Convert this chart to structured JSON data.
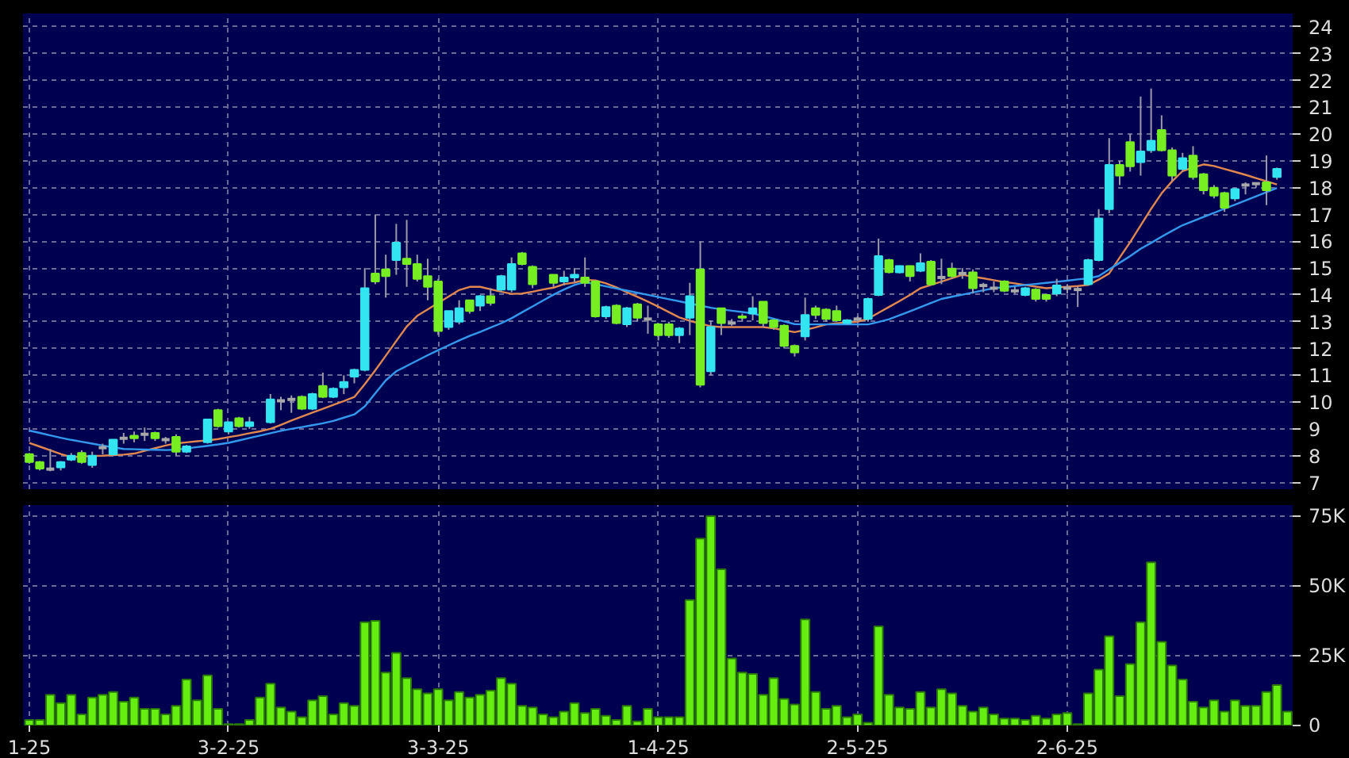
{
  "chart_data": [
    {
      "type": "candlestick",
      "categories": [
        null,
        null,
        null,
        null,
        null,
        null,
        null,
        null,
        null,
        null,
        null,
        null,
        null,
        null,
        null,
        null,
        null,
        null,
        null,
        null,
        null,
        null,
        null,
        null,
        null,
        null,
        null,
        null,
        null,
        null,
        null,
        null,
        null,
        null,
        null,
        null,
        null,
        null,
        null,
        null,
        null,
        null,
        null,
        null,
        null,
        null,
        null,
        null,
        null,
        null,
        null,
        null,
        null,
        null,
        null,
        null,
        null,
        null,
        null,
        null,
        null,
        null,
        null,
        null,
        null,
        null,
        null,
        null,
        null,
        null,
        null,
        null,
        null,
        null,
        null,
        null,
        null,
        null,
        null,
        null,
        null,
        null,
        null,
        null,
        null,
        null,
        null,
        null,
        null,
        null,
        null,
        null,
        null,
        null,
        null,
        null,
        null,
        null,
        null,
        null,
        null,
        null,
        null,
        null,
        null,
        null,
        null,
        null,
        null,
        null,
        null,
        null,
        null,
        null,
        null,
        null,
        null,
        null,
        null,
        null,
        null
      ],
      "ohlc": [
        [
          8.06,
          8.1,
          7.7,
          7.76
        ],
        [
          7.76,
          7.8,
          7.45,
          7.52
        ],
        [
          7.5,
          8.25,
          7.42,
          7.5
        ],
        [
          7.56,
          7.8,
          7.45,
          7.76
        ],
        [
          7.85,
          8.1,
          7.8,
          8.0
        ],
        [
          8.1,
          8.2,
          7.7,
          7.76
        ],
        [
          7.65,
          8.15,
          7.55,
          8.0
        ],
        [
          8.3,
          8.45,
          8.05,
          8.3
        ],
        [
          8.05,
          8.6,
          8.0,
          8.6
        ],
        [
          8.65,
          8.85,
          8.45,
          8.65
        ],
        [
          8.75,
          8.9,
          8.5,
          8.65
        ],
        [
          8.8,
          9.05,
          8.55,
          8.8
        ],
        [
          8.85,
          8.9,
          8.55,
          8.65
        ],
        [
          8.6,
          8.7,
          8.45,
          8.6
        ],
        [
          8.7,
          8.8,
          8.0,
          8.15
        ],
        [
          8.15,
          8.4,
          8.1,
          8.35
        ],
        null,
        [
          8.5,
          9.35,
          8.45,
          9.35
        ],
        [
          9.7,
          9.75,
          9.05,
          9.1
        ],
        [
          8.9,
          9.25,
          8.8,
          9.25
        ],
        [
          9.4,
          9.45,
          9.05,
          9.1
        ],
        [
          9.1,
          9.45,
          9.0,
          9.25
        ],
        null,
        [
          9.25,
          10.3,
          9.2,
          10.1
        ],
        [
          10.05,
          10.2,
          9.7,
          10.05
        ],
        [
          10.1,
          10.25,
          9.6,
          10.1
        ],
        [
          10.2,
          10.25,
          9.7,
          9.75
        ],
        [
          9.75,
          10.35,
          9.7,
          10.3
        ],
        [
          10.6,
          11.1,
          10.15,
          10.2
        ],
        [
          10.2,
          10.55,
          10.15,
          10.5
        ],
        [
          10.55,
          11.0,
          10.3,
          10.75
        ],
        [
          10.95,
          11.25,
          10.7,
          11.2
        ],
        [
          11.2,
          15.0,
          11.15,
          14.25
        ],
        [
          14.8,
          17.0,
          14.4,
          14.5
        ],
        [
          14.95,
          15.5,
          13.9,
          14.7
        ],
        [
          15.3,
          16.65,
          14.75,
          15.95
        ],
        [
          15.35,
          16.8,
          14.3,
          15.15
        ],
        [
          15.15,
          15.5,
          14.5,
          14.6
        ],
        [
          14.7,
          15.35,
          13.8,
          14.3
        ],
        [
          14.5,
          14.6,
          12.5,
          12.65
        ],
        [
          12.8,
          13.4,
          12.7,
          13.4
        ],
        [
          13.0,
          13.8,
          12.9,
          13.5
        ],
        [
          13.8,
          13.8,
          13.3,
          13.4
        ],
        [
          13.6,
          14.0,
          13.4,
          13.95
        ],
        [
          13.95,
          14.25,
          13.6,
          13.7
        ],
        [
          14.2,
          14.75,
          14.1,
          14.7
        ],
        [
          14.2,
          15.4,
          14.1,
          15.15
        ],
        [
          15.55,
          15.6,
          15.1,
          15.15
        ],
        [
          15.05,
          15.1,
          14.25,
          14.4
        ],
        null,
        [
          14.75,
          14.75,
          14.3,
          14.45
        ],
        [
          14.5,
          14.9,
          14.35,
          14.65
        ],
        [
          14.65,
          15.0,
          14.45,
          14.75
        ],
        [
          14.65,
          15.4,
          14.3,
          14.45
        ],
        [
          14.5,
          14.55,
          13.15,
          13.2
        ],
        [
          13.2,
          13.6,
          13.1,
          13.55
        ],
        [
          13.6,
          13.65,
          12.9,
          12.95
        ],
        [
          12.9,
          13.55,
          12.8,
          13.5
        ],
        [
          13.65,
          13.7,
          13.0,
          13.15
        ],
        [
          13.1,
          13.6,
          12.55,
          13.1
        ],
        [
          12.9,
          12.95,
          12.3,
          12.5
        ],
        [
          12.9,
          13.0,
          12.4,
          12.5
        ],
        [
          12.5,
          12.8,
          12.2,
          12.75
        ],
        [
          13.15,
          14.45,
          12.5,
          13.95
        ],
        [
          14.95,
          16.0,
          10.55,
          10.65
        ],
        [
          11.15,
          13.05,
          11.0,
          12.8
        ],
        [
          13.5,
          13.5,
          12.5,
          12.95
        ],
        [
          12.95,
          13.1,
          12.85,
          12.95
        ],
        [
          13.2,
          13.3,
          13.0,
          13.15
        ],
        [
          13.3,
          13.95,
          13.05,
          13.5
        ],
        [
          13.75,
          13.75,
          12.8,
          12.95
        ],
        [
          13.05,
          13.1,
          12.7,
          12.8
        ],
        [
          12.85,
          12.9,
          12.0,
          12.1
        ],
        [
          12.1,
          12.15,
          11.7,
          11.85
        ],
        [
          12.45,
          13.9,
          12.3,
          13.25
        ],
        [
          13.5,
          13.6,
          13.1,
          13.25
        ],
        [
          13.45,
          13.5,
          13.0,
          13.1
        ],
        [
          13.4,
          13.6,
          13.0,
          13.05
        ],
        [
          12.95,
          13.1,
          12.9,
          13.05
        ],
        [
          13.1,
          13.2,
          13.0,
          13.1
        ],
        [
          13.1,
          13.9,
          13.0,
          13.85
        ],
        [
          14.0,
          16.1,
          13.95,
          15.45
        ],
        [
          15.3,
          15.35,
          14.8,
          14.85
        ],
        [
          14.84,
          15.1,
          14.8,
          15.08
        ],
        [
          15.08,
          15.1,
          14.5,
          14.7
        ],
        [
          14.9,
          15.55,
          14.85,
          15.18
        ],
        [
          15.24,
          15.3,
          14.35,
          14.4
        ],
        [
          14.65,
          15.35,
          14.4,
          14.65
        ],
        [
          14.98,
          15.2,
          14.6,
          14.7
        ],
        [
          14.8,
          15.0,
          14.6,
          14.8
        ],
        [
          14.84,
          14.95,
          14.05,
          14.25
        ],
        [
          14.35,
          14.45,
          14.1,
          14.35
        ],
        [
          14.25,
          14.5,
          14.1,
          14.25
        ],
        [
          14.5,
          14.55,
          14.1,
          14.15
        ],
        [
          14.15,
          14.3,
          14.05,
          14.15
        ],
        [
          14.0,
          14.3,
          13.95,
          14.25
        ],
        [
          14.2,
          14.25,
          13.75,
          13.85
        ],
        [
          14.0,
          14.05,
          13.75,
          13.85
        ],
        [
          14.05,
          14.6,
          13.95,
          14.35
        ],
        [
          14.25,
          14.4,
          14.05,
          14.25
        ],
        [
          14.2,
          14.3,
          13.55,
          14.2
        ],
        [
          14.4,
          15.35,
          14.35,
          15.3
        ],
        [
          15.3,
          17.2,
          15.25,
          16.85
        ],
        [
          17.2,
          19.85,
          17.05,
          18.85
        ],
        [
          18.85,
          19.0,
          18.1,
          18.45
        ],
        [
          19.7,
          20.0,
          18.6,
          18.8
        ],
        [
          18.95,
          21.4,
          18.45,
          19.35
        ],
        [
          19.4,
          21.7,
          19.3,
          19.75
        ],
        [
          20.15,
          20.7,
          19.35,
          19.4
        ],
        [
          19.4,
          19.5,
          18.25,
          18.45
        ],
        [
          18.7,
          19.3,
          18.6,
          19.1
        ],
        [
          19.2,
          19.55,
          18.3,
          18.4
        ],
        [
          18.5,
          18.55,
          17.75,
          17.9
        ],
        [
          18.0,
          18.1,
          17.6,
          17.7
        ],
        [
          17.8,
          17.85,
          17.1,
          17.25
        ],
        [
          17.6,
          18.0,
          17.5,
          17.95
        ],
        [
          18.1,
          18.2,
          17.75,
          18.1
        ],
        [
          18.15,
          18.2,
          18.0,
          18.15
        ],
        [
          18.2,
          19.2,
          17.35,
          17.9
        ],
        [
          18.4,
          18.75,
          18.3,
          18.7
        ],
        null
      ],
      "colors": [
        "#77ee22",
        "#77ee22",
        "#a8a8a8",
        "#33e5f0",
        "#33e5f0",
        "#77ee22",
        "#33e5f0",
        "#a8a8a8",
        "#33e5f0",
        "#a8a8a8",
        "#77ee22",
        "#a8a8a8",
        "#77ee22",
        "#a8a8a8",
        "#77ee22",
        "#33e5f0",
        null,
        "#33e5f0",
        "#77ee22",
        "#33e5f0",
        "#77ee22",
        "#33e5f0",
        null,
        "#33e5f0",
        "#a8a8a8",
        "#a8a8a8",
        "#77ee22",
        "#33e5f0",
        "#77ee22",
        "#33e5f0",
        "#33e5f0",
        "#33e5f0",
        "#33e5f0",
        "#77ee22",
        "#77ee22",
        "#33e5f0",
        "#77ee22",
        "#77ee22",
        "#77ee22",
        "#77ee22",
        "#33e5f0",
        "#33e5f0",
        "#77ee22",
        "#33e5f0",
        "#77ee22",
        "#33e5f0",
        "#33e5f0",
        "#77ee22",
        "#77ee22",
        null,
        "#77ee22",
        "#33e5f0",
        "#33e5f0",
        "#77ee22",
        "#77ee22",
        "#33e5f0",
        "#77ee22",
        "#33e5f0",
        "#77ee22",
        "#a8a8a8",
        "#77ee22",
        "#77ee22",
        "#33e5f0",
        "#33e5f0",
        "#77ee22",
        "#33e5f0",
        "#77ee22",
        "#a8a8a8",
        "#77ee22",
        "#33e5f0",
        "#77ee22",
        "#77ee22",
        "#77ee22",
        "#77ee22",
        "#33e5f0",
        "#77ee22",
        "#77ee22",
        "#77ee22",
        "#33e5f0",
        "#a8a8a8",
        "#33e5f0",
        "#33e5f0",
        "#77ee22",
        "#33e5f0",
        "#77ee22",
        "#33e5f0",
        "#77ee22",
        "#a8a8a8",
        "#77ee22",
        "#a8a8a8",
        "#77ee22",
        "#a8a8a8",
        "#a8a8a8",
        "#77ee22",
        "#a8a8a8",
        "#33e5f0",
        "#77ee22",
        "#77ee22",
        "#33e5f0",
        "#a8a8a8",
        "#a8a8a8",
        "#33e5f0",
        "#33e5f0",
        "#33e5f0",
        "#77ee22",
        "#77ee22",
        "#33e5f0",
        "#33e5f0",
        "#77ee22",
        "#77ee22",
        "#33e5f0",
        "#77ee22",
        "#77ee22",
        "#77ee22",
        "#77ee22",
        "#33e5f0",
        "#a8a8a8",
        "#a8a8a8",
        "#77ee22",
        "#33e5f0",
        null
      ],
      "series": [
        {
          "type": "line",
          "color": "#e08850",
          "values": [
            8.48,
            8.34,
            8.2,
            8.06,
            7.95,
            7.97,
            7.99,
            8.0,
            8.02,
            8.04,
            8.08,
            8.18,
            8.28,
            8.38,
            8.46,
            8.5,
            8.54,
            8.57,
            8.62,
            8.69,
            8.76,
            8.84,
            8.91,
            9.0,
            9.15,
            9.31,
            9.46,
            9.61,
            9.75,
            9.9,
            10.04,
            10.19,
            10.67,
            11.19,
            11.73,
            12.28,
            12.82,
            13.22,
            13.46,
            13.7,
            13.94,
            14.18,
            14.3,
            14.3,
            14.21,
            14.12,
            14.04,
            14.05,
            14.12,
            14.2,
            14.27,
            14.4,
            14.46,
            14.56,
            14.54,
            14.43,
            14.28,
            14.1,
            13.93,
            13.75,
            13.56,
            13.36,
            13.16,
            13.03,
            12.93,
            12.83,
            12.8,
            12.8,
            12.8,
            12.8,
            12.8,
            12.75,
            12.68,
            12.61,
            12.69,
            12.79,
            12.9,
            12.94,
            12.97,
            13.0,
            13.11,
            13.33,
            13.55,
            13.77,
            14.0,
            14.25,
            14.37,
            14.5,
            14.62,
            14.75,
            14.68,
            14.62,
            14.55,
            14.48,
            14.43,
            14.37,
            14.31,
            14.25,
            14.28,
            14.3,
            14.33,
            14.37,
            14.57,
            14.8,
            15.39,
            15.97,
            16.59,
            17.21,
            17.79,
            18.24,
            18.62,
            18.75,
            18.87,
            18.81,
            18.7,
            18.59,
            18.48,
            18.36,
            18.24,
            18.12,
            null
          ]
        },
        {
          "type": "line",
          "color": "#3399ee",
          "values": [
            8.94,
            8.85,
            8.76,
            8.67,
            8.59,
            8.52,
            8.45,
            8.38,
            8.31,
            8.25,
            8.24,
            8.23,
            8.22,
            8.21,
            8.22,
            8.27,
            8.32,
            8.37,
            8.42,
            8.48,
            8.57,
            8.66,
            8.75,
            8.84,
            8.93,
            9.0,
            9.07,
            9.14,
            9.21,
            9.3,
            9.42,
            9.54,
            9.84,
            10.33,
            10.81,
            11.15,
            11.35,
            11.55,
            11.75,
            11.94,
            12.12,
            12.3,
            12.47,
            12.62,
            12.78,
            12.94,
            13.13,
            13.35,
            13.57,
            13.79,
            14.01,
            14.2,
            14.37,
            14.48,
            14.4,
            14.32,
            14.24,
            14.16,
            14.08,
            14.0,
            13.92,
            13.84,
            13.76,
            13.68,
            13.6,
            13.52,
            13.46,
            13.41,
            13.36,
            13.31,
            13.21,
            13.11,
            13.01,
            12.91,
            12.9,
            12.9,
            12.9,
            12.9,
            12.9,
            12.9,
            12.9,
            12.99,
            13.09,
            13.24,
            13.39,
            13.54,
            13.7,
            13.85,
            13.93,
            14.01,
            14.09,
            14.17,
            14.25,
            14.29,
            14.33,
            14.37,
            14.41,
            14.45,
            14.49,
            14.53,
            14.58,
            14.62,
            14.7,
            14.95,
            15.2,
            15.45,
            15.72,
            15.94,
            16.17,
            16.39,
            16.6,
            16.75,
            16.91,
            17.06,
            17.22,
            17.37,
            17.52,
            17.68,
            17.83,
            17.99,
            null
          ]
        }
      ],
      "ylim": [
        6.75,
        24.5
      ],
      "yticks": [
        7,
        8,
        9,
        10,
        11,
        12,
        13,
        14,
        15,
        16,
        17,
        18,
        19,
        20,
        21,
        22,
        23,
        24
      ],
      "grid": true,
      "tick_labels": "y"
    },
    {
      "type": "bar",
      "color": "#66ee11",
      "categories": [
        "1-25",
        null,
        null,
        null,
        null,
        null,
        null,
        null,
        null,
        null,
        null,
        null,
        null,
        null,
        null,
        null,
        null,
        null,
        null,
        "3-2-25",
        null,
        null,
        null,
        null,
        null,
        null,
        null,
        null,
        null,
        null,
        null,
        null,
        null,
        null,
        null,
        null,
        null,
        null,
        null,
        "3-3-25",
        null,
        null,
        null,
        null,
        null,
        null,
        null,
        null,
        null,
        null,
        null,
        null,
        null,
        null,
        null,
        null,
        null,
        null,
        null,
        null,
        "1-4-25",
        null,
        null,
        null,
        null,
        null,
        null,
        null,
        null,
        null,
        null,
        null,
        null,
        null,
        null,
        null,
        null,
        null,
        null,
        "2-5-25",
        null,
        null,
        null,
        null,
        null,
        null,
        null,
        null,
        null,
        null,
        null,
        null,
        null,
        null,
        null,
        null,
        null,
        null,
        null,
        "2-6-25",
        null,
        null,
        null,
        null,
        null,
        null,
        null,
        null,
        null,
        null,
        null,
        null,
        null,
        null,
        null,
        null,
        null,
        null,
        null,
        null,
        null
      ],
      "values": [
        2000,
        2000,
        11000,
        8000,
        11000,
        4000,
        10000,
        11000,
        12000,
        8500,
        10000,
        6000,
        6000,
        4000,
        7000,
        16500,
        9000,
        18000,
        6000,
        500,
        500,
        2000,
        10000,
        15000,
        6500,
        5000,
        3000,
        9000,
        10500,
        4000,
        8000,
        7000,
        37000,
        37500,
        19000,
        26000,
        17000,
        13000,
        11500,
        13000,
        9000,
        12000,
        10000,
        11000,
        12500,
        17000,
        15000,
        7000,
        6500,
        4000,
        3000,
        5000,
        8000,
        4500,
        6000,
        3500,
        2000,
        7000,
        1500,
        6000,
        3000,
        3000,
        3000,
        45000,
        67000,
        75000,
        56000,
        24000,
        19000,
        18500,
        11000,
        17000,
        9500,
        7500,
        38000,
        12000,
        6000,
        7000,
        3000,
        4000,
        1000,
        35500,
        11000,
        6500,
        6000,
        12000,
        6500,
        13000,
        11500,
        7000,
        5000,
        6500,
        4000,
        2500,
        2500,
        2000,
        3500,
        2500,
        4000,
        4500,
        500,
        11500,
        20000,
        32000,
        10500,
        22000,
        37000,
        58500,
        30000,
        21500,
        16500,
        8500,
        6500,
        9000,
        5000,
        9000,
        7000,
        7000,
        12000,
        14500,
        5000
      ],
      "ylim": [
        0,
        79000
      ],
      "yticks": [
        {
          "value": 0,
          "label": "0"
        },
        {
          "value": 25000,
          "label": "25K"
        },
        {
          "value": 50000,
          "label": "50K"
        },
        {
          "value": 75000,
          "label": "75K"
        }
      ],
      "grid": true
    }
  ]
}
